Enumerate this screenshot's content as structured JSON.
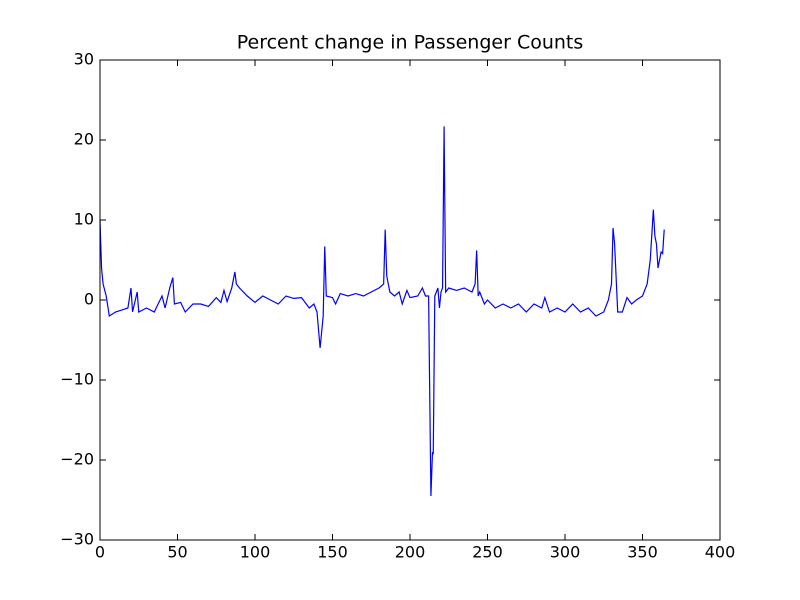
{
  "chart_data": {
    "type": "line",
    "title": "Percent change in Passenger Counts",
    "x": [
      0,
      1,
      2,
      4,
      6,
      10,
      15,
      18,
      20,
      21,
      24,
      25,
      30,
      35,
      40,
      42,
      45,
      47,
      48,
      52,
      55,
      60,
      65,
      70,
      75,
      78,
      80,
      82,
      85,
      87,
      88,
      90,
      95,
      100,
      105,
      110,
      115,
      120,
      125,
      130,
      135,
      138,
      140,
      142,
      144,
      145,
      146,
      150,
      152,
      155,
      160,
      165,
      170,
      175,
      180,
      183,
      184,
      185,
      187,
      190,
      193,
      195,
      198,
      200,
      205,
      208,
      210,
      212,
      213.5,
      214.5,
      215,
      216,
      218,
      219,
      220,
      221,
      222,
      223,
      225,
      230,
      235,
      240,
      242,
      243,
      244,
      245,
      248,
      250,
      255,
      260,
      265,
      270,
      275,
      280,
      285,
      287,
      290,
      295,
      300,
      305,
      310,
      315,
      320,
      325,
      328,
      330,
      331,
      332,
      334,
      337,
      340,
      343,
      346,
      350,
      353,
      355,
      357,
      358,
      359,
      360,
      361,
      362,
      363,
      364
    ],
    "series": [
      {
        "name": "Percent change",
        "color": "#0000ff",
        "values": [
          10,
          4,
          2,
          0.5,
          -2,
          -1.5,
          -1.2,
          -1,
          1.5,
          -1.5,
          1,
          -1.5,
          -1,
          -1.5,
          0.5,
          -1,
          1.5,
          2.8,
          -0.5,
          -0.3,
          -1.5,
          -0.5,
          -0.5,
          -0.8,
          0.3,
          -0.3,
          1.2,
          -0.2,
          1.5,
          3.5,
          2,
          1.5,
          0.5,
          -0.3,
          0.5,
          0,
          -0.5,
          0.5,
          0.2,
          0.3,
          -1,
          -0.5,
          -1.5,
          -6,
          -2,
          6.7,
          0.5,
          0.3,
          -0.5,
          0.8,
          0.5,
          0.8,
          0.5,
          1,
          1.5,
          2,
          8.8,
          3,
          1,
          0.5,
          1,
          -0.5,
          1.2,
          0.3,
          0.5,
          1.5,
          0.5,
          0.5,
          -24.5,
          -19,
          -19.3,
          0.5,
          1.5,
          -1,
          1,
          1.5,
          21.7,
          1,
          1.5,
          1.2,
          1.5,
          1,
          2,
          6.2,
          0.5,
          1,
          -0.5,
          0,
          -1,
          -0.5,
          -1,
          -0.5,
          -1.5,
          -0.5,
          -1,
          0.3,
          -1.5,
          -1,
          -1.5,
          -0.5,
          -1.5,
          -1,
          -2,
          -1.5,
          0,
          2,
          9,
          7,
          -1.5,
          -1.5,
          0.3,
          -0.5,
          0,
          0.5,
          2,
          5,
          11.3,
          8,
          7,
          4,
          5,
          6,
          5.8,
          8.8
        ]
      }
    ],
    "xlim": [
      0,
      400
    ],
    "xticks": [
      0,
      50,
      100,
      150,
      200,
      250,
      300,
      350,
      400
    ],
    "ylim": [
      -30,
      30
    ],
    "yticks": [
      {
        "value": -30,
        "label": "−30"
      },
      {
        "value": -20,
        "label": "−20"
      },
      {
        "value": -10,
        "label": "−10"
      },
      0,
      10,
      20,
      30
    ]
  }
}
